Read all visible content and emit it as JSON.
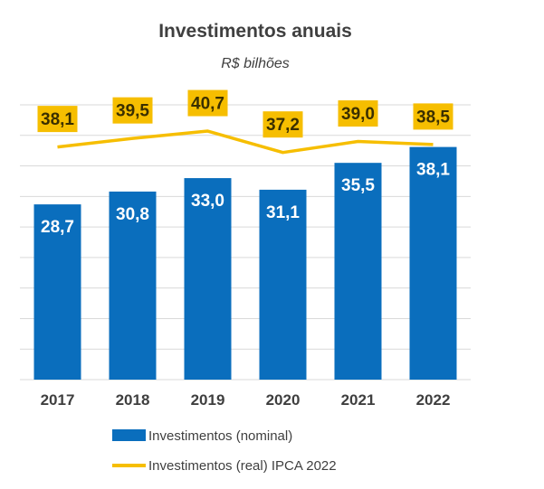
{
  "chart_data": {
    "type": "bar",
    "title": "Investimentos anuais",
    "subtitle": "R$ bilhões",
    "categories": [
      "2017",
      "2018",
      "2019",
      "2020",
      "2021",
      "2022"
    ],
    "series": [
      {
        "name": "Investimentos (nominal)",
        "type": "bar",
        "color": "#0a6ebd",
        "values": [
          28.7,
          30.8,
          33.0,
          31.1,
          35.5,
          38.1
        ],
        "labels": [
          "28,7",
          "30,8",
          "33,0",
          "31,1",
          "35,5",
          "38,1"
        ]
      },
      {
        "name": "Investimentos (real) IPCA 2022",
        "type": "line",
        "color": "#f6be00",
        "values": [
          38.1,
          39.5,
          40.7,
          37.2,
          39.0,
          38.5
        ],
        "labels": [
          "38,1",
          "39,5",
          "40,7",
          "37,2",
          "39,0",
          "38,5"
        ]
      }
    ],
    "ylim": [
      0,
      45
    ],
    "grid": true,
    "legend": "bottom"
  }
}
